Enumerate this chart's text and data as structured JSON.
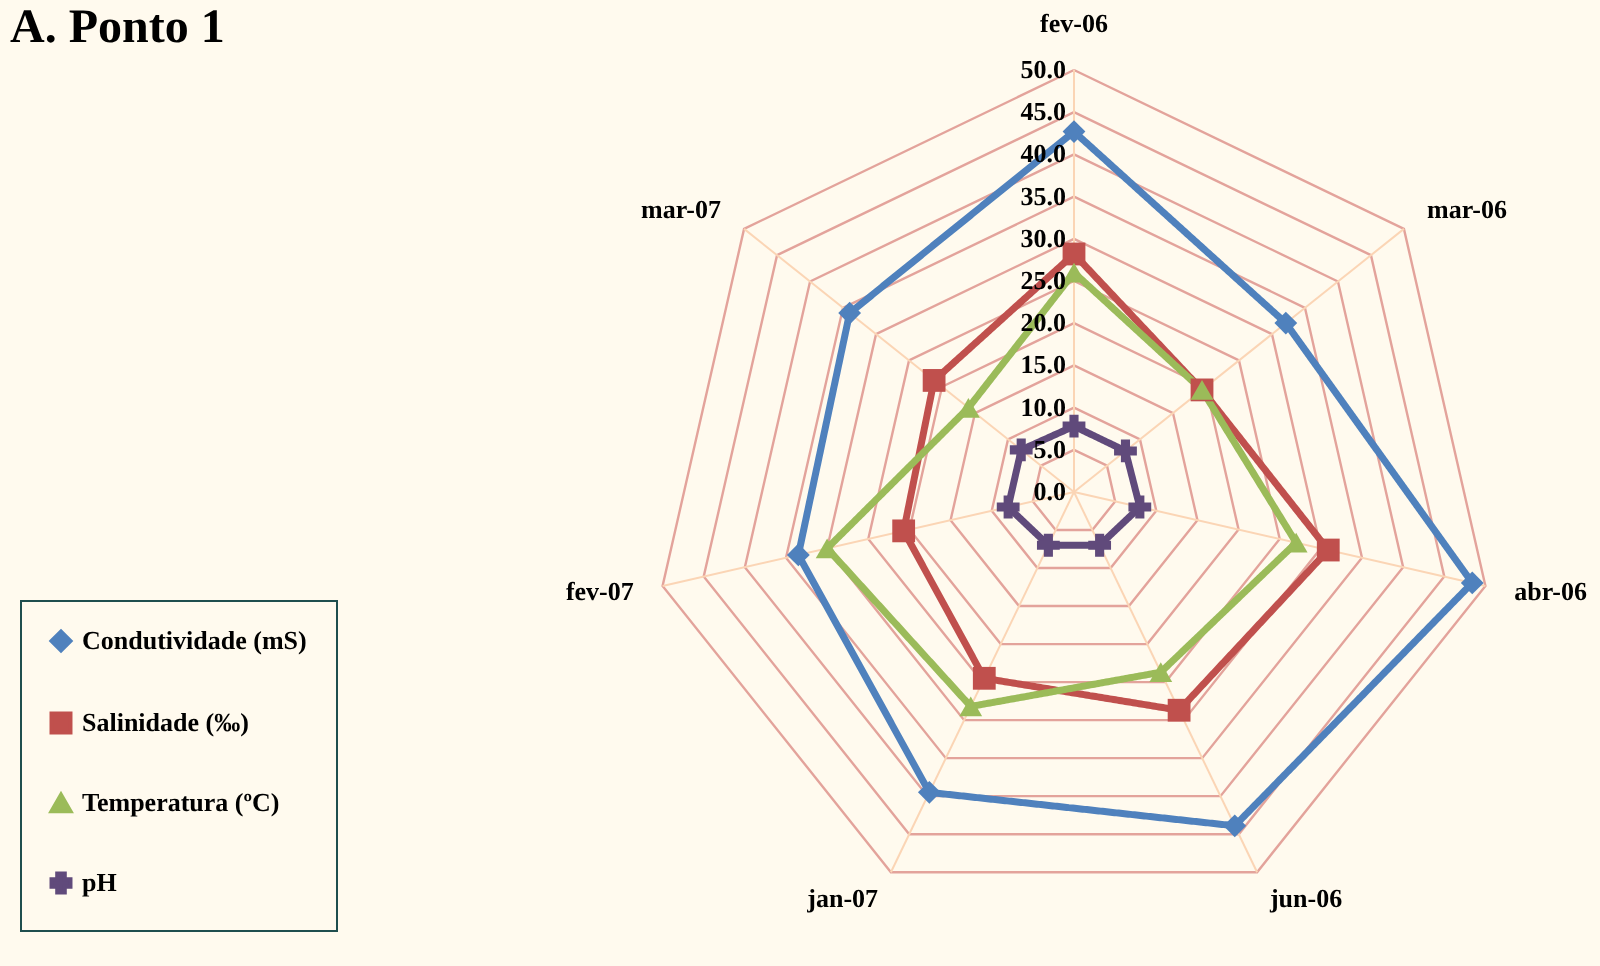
{
  "chart_data": {
    "type": "radar",
    "title": "A. Ponto 1",
    "categories": [
      "fev-06",
      "mar-06",
      "abr-06",
      "jun-06",
      "jan-07",
      "fev-07",
      "mar-07"
    ],
    "series": [
      {
        "name": "Condutividade (mS)",
        "color": "#4f81bd",
        "marker": "diamond",
        "values": [
          42.7,
          32.1,
          48.4,
          43.9,
          39.5,
          33.5,
          34.0
        ]
      },
      {
        "name": "Salinidade (‰)",
        "color": "#c0504d",
        "marker": "square",
        "values": [
          28.2,
          19.4,
          30.9,
          28.7,
          24.5,
          20.7,
          21.2
        ]
      },
      {
        "name": "Temperatura (ºC)",
        "color": "#9bbb59",
        "marker": "triangle",
        "values": [
          26.0,
          19.4,
          27.0,
          23.7,
          28.2,
          30.0,
          16.0
        ]
      },
      {
        "name": "pH",
        "color": "#604a7b",
        "marker": "cross",
        "values": [
          7.8,
          7.8,
          8.0,
          7.0,
          7.0,
          8.0,
          8.0
        ]
      }
    ],
    "ylim": [
      0,
      50
    ],
    "yticks": [
      {
        "value": 0,
        "label": "0.0"
      },
      {
        "value": 5,
        "label": "5.0"
      },
      {
        "value": 10,
        "label": "10.0"
      },
      {
        "value": 15,
        "label": "15.0"
      },
      {
        "value": 20,
        "label": "20.0"
      },
      {
        "value": 25,
        "label": "25.0"
      },
      {
        "value": 30,
        "label": "30.0"
      },
      {
        "value": 35,
        "label": "35.0"
      },
      {
        "value": 40,
        "label": "40.0"
      },
      {
        "value": 45,
        "label": "45.0"
      },
      {
        "value": 50,
        "label": "50.0"
      }
    ],
    "grid": true,
    "legend": "bottom left",
    "line_style": "solid"
  }
}
